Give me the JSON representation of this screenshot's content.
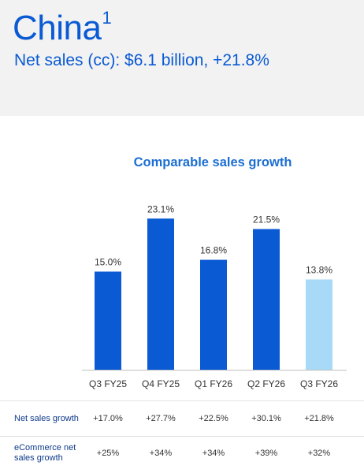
{
  "header": {
    "title": "China",
    "footnote_marker": "1",
    "subtitle": "Net sales (cc): $6.1 billion, +21.8%"
  },
  "colors": {
    "brand_blue": "#0a5ad4",
    "bar_blue": "#0a5ad4",
    "bar_highlight": "#a8daf7",
    "header_bg": "#f2f2f2"
  },
  "chart_data": {
    "type": "bar",
    "title": "Comparable sales growth",
    "categories": [
      "Q3 FY25",
      "Q4 FY25",
      "Q1 FY26",
      "Q2 FY26",
      "Q3 FY26"
    ],
    "values": [
      15.0,
      23.1,
      16.8,
      21.5,
      13.8
    ],
    "data_labels": [
      "15.0%",
      "23.1%",
      "16.8%",
      "21.5%",
      "13.8%"
    ],
    "unit": "%",
    "highlighted_category": "Q3 FY26",
    "ylim": [
      0,
      25
    ],
    "grid": false,
    "legend": "none"
  },
  "table": {
    "rows": [
      {
        "label": "Net sales growth",
        "values": [
          "+17.0%",
          "+27.7%",
          "+22.5%",
          "+30.1%",
          "+21.8%"
        ]
      },
      {
        "label": "eCommerce net sales growth",
        "values": [
          "+25%",
          "+34%",
          "+34%",
          "+39%",
          "+32%"
        ]
      }
    ]
  }
}
